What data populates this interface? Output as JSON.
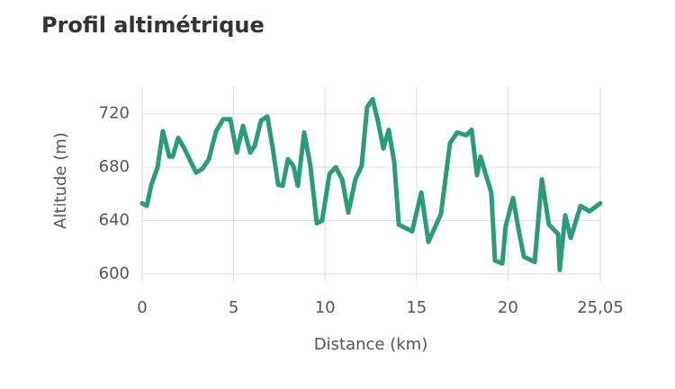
{
  "chart_data": {
    "type": "line",
    "title": "Profil altimétrique",
    "xlabel": "Distance (km)",
    "ylabel": "Altitude (m)",
    "x": [
      0,
      0.25,
      0.5,
      0.84,
      1.13,
      1.48,
      1.67,
      1.97,
      2.31,
      2.66,
      2.95,
      3.3,
      3.64,
      4.04,
      4.43,
      4.82,
      5.17,
      5.51,
      5.91,
      6.15,
      6.5,
      6.84,
      7.14,
      7.43,
      7.68,
      7.97,
      8.27,
      8.51,
      8.86,
      9.2,
      9.55,
      9.84,
      10.24,
      10.58,
      10.93,
      11.27,
      11.66,
      12.0,
      12.3,
      12.6,
      12.9,
      13.19,
      13.48,
      13.78,
      14.03,
      14.76,
      15.26,
      15.65,
      16.34,
      16.83,
      17.22,
      17.72,
      18.01,
      18.31,
      18.5,
      18.8,
      19.09,
      19.29,
      19.69,
      19.88,
      20.28,
      20.57,
      20.87,
      21.46,
      21.85,
      22.24,
      22.74,
      22.83,
      23.13,
      23.43,
      23.97,
      24.46,
      25.05
    ],
    "series": [
      {
        "name": "Altitude",
        "color": "#2a9d78",
        "values": [
          653,
          651,
          667,
          680,
          707,
          688,
          688,
          702,
          694,
          684,
          676,
          679,
          686,
          707,
          716,
          716,
          691,
          711,
          691,
          696,
          715,
          718,
          694,
          667,
          666,
          686,
          681,
          666,
          706,
          681,
          638,
          640,
          675,
          680,
          671,
          646,
          671,
          681,
          725,
          731,
          714,
          694,
          708,
          684,
          637,
          632,
          661,
          624,
          645,
          698,
          706,
          704,
          708,
          674,
          688,
          674,
          661,
          610,
          608,
          636,
          657,
          634,
          613,
          609,
          671,
          637,
          630,
          603,
          644,
          627,
          651,
          647,
          653
        ]
      }
    ],
    "xlim": [
      0,
      25.05
    ],
    "xticks": [
      0,
      5,
      10,
      15,
      20,
      {
        "value": 25.05,
        "label": "25,05"
      }
    ],
    "ylim": [
      600,
      740
    ],
    "yticks": [
      600,
      640,
      680,
      720
    ],
    "grid": true
  }
}
